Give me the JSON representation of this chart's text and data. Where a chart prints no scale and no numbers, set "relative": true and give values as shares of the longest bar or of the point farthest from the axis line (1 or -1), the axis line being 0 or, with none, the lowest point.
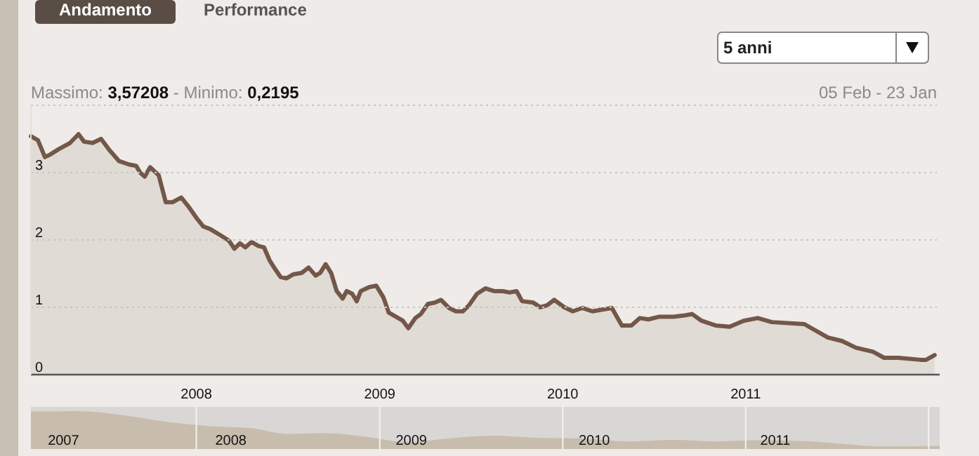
{
  "chart_data": [
    {
      "type": "area",
      "annotations": [
        "Andamento",
        "Performance",
        "5 anni",
        "Massimo:",
        "3,57208",
        "- Minimo:",
        "0,2195",
        "05 Feb - 23 Jan"
      ],
      "x": [
        "2007-02-05",
        "2007-02-19",
        "2007-03-05",
        "2007-03-16",
        "2007-04-02",
        "2007-04-24",
        "2007-05-11",
        "2007-05-22",
        "2007-06-08",
        "2007-06-25",
        "2007-07-12",
        "2007-07-31",
        "2007-08-20",
        "2007-09-03",
        "2007-09-11",
        "2007-09-20",
        "2007-10-01",
        "2007-10-18",
        "2007-11-01",
        "2007-11-15",
        "2007-12-02",
        "2007-12-16",
        "2008-01-01",
        "2008-01-15",
        "2008-01-29",
        "2008-02-18",
        "2008-03-06",
        "2008-03-17",
        "2008-03-28",
        "2008-04-08",
        "2008-04-20",
        "2008-05-04",
        "2008-05-15",
        "2008-05-26",
        "2008-06-06",
        "2008-06-17",
        "2008-06-29",
        "2008-07-13",
        "2008-07-29",
        "2008-08-12",
        "2008-08-26",
        "2008-09-04",
        "2008-09-15",
        "2008-09-26",
        "2008-10-07",
        "2008-10-19",
        "2008-10-27",
        "2008-11-07",
        "2008-11-16",
        "2008-11-24",
        "2008-12-11",
        "2008-12-25",
        "2009-01-08",
        "2009-01-19",
        "2009-02-02",
        "2009-02-16",
        "2009-02-27",
        "2009-03-13",
        "2009-03-24",
        "2009-04-07",
        "2009-04-21",
        "2009-05-03",
        "2009-05-19",
        "2009-06-02",
        "2009-06-16",
        "2009-06-28",
        "2009-07-14",
        "2009-07-31",
        "2009-08-17",
        "2009-09-03",
        "2009-09-17",
        "2009-10-01",
        "2009-10-12",
        "2009-11-03",
        "2009-11-17",
        "2009-12-01",
        "2009-12-15",
        "2010-01-04",
        "2010-01-21",
        "2010-02-09",
        "2010-03-01",
        "2010-04-09",
        "2010-04-29",
        "2010-05-18",
        "2010-06-04",
        "2010-06-21",
        "2010-07-13",
        "2010-08-10",
        "2010-09-02",
        "2010-09-16",
        "2010-10-05",
        "2010-11-02",
        "2010-11-30",
        "2010-12-28",
        "2011-01-25",
        "2011-02-22",
        "2011-04-28",
        "2011-06-14",
        "2011-07-12",
        "2011-08-09",
        "2011-09-12",
        "2011-10-04",
        "2011-11-01",
        "2011-12-16",
        "2011-12-27",
        "2012-01-13"
      ],
      "series": [
        {
          "color": "#735749",
          "values": [
            3.54,
            3.48,
            3.23,
            3.27,
            3.35,
            3.44,
            3.57,
            3.46,
            3.44,
            3.5,
            3.33,
            3.17,
            3.12,
            3.1,
            3.0,
            2.94,
            3.08,
            2.96,
            2.56,
            2.56,
            2.63,
            2.5,
            2.33,
            2.2,
            2.16,
            2.07,
            1.99,
            1.87,
            1.95,
            1.89,
            1.97,
            1.91,
            1.89,
            1.7,
            1.57,
            1.45,
            1.43,
            1.49,
            1.51,
            1.59,
            1.47,
            1.51,
            1.64,
            1.51,
            1.24,
            1.13,
            1.24,
            1.2,
            1.09,
            1.24,
            1.3,
            1.32,
            1.15,
            0.92,
            0.86,
            0.8,
            0.69,
            0.84,
            0.9,
            1.05,
            1.07,
            1.11,
            0.99,
            0.94,
            0.94,
            1.03,
            1.2,
            1.28,
            1.24,
            1.24,
            1.22,
            1.24,
            1.09,
            1.07,
            1.0,
            1.03,
            1.11,
            1.0,
            0.94,
            0.99,
            0.94,
            0.99,
            0.73,
            0.73,
            0.84,
            0.82,
            0.86,
            0.86,
            0.88,
            0.9,
            0.8,
            0.73,
            0.71,
            0.8,
            0.84,
            0.78,
            0.75,
            0.55,
            0.5,
            0.4,
            0.34,
            0.25,
            0.25,
            0.22,
            0.22,
            0.29
          ]
        }
      ],
      "xlim": [
        "2007-02-05",
        "2012-01-23"
      ],
      "xticks": [
        {
          "value": "2008-01-01",
          "label": "2008"
        },
        {
          "value": "2009-01-01",
          "label": "2009"
        },
        {
          "value": "2010-01-01",
          "label": "2010"
        },
        {
          "value": "2011-01-01",
          "label": "2011"
        }
      ],
      "ylim": [
        0,
        4
      ],
      "yticks": [
        0,
        1,
        2,
        3,
        {
          "value": 4,
          "label": null
        }
      ],
      "grid": "y"
    },
    {
      "type": "area",
      "relative": true,
      "x": [
        "2007-02-05",
        "2007-05-11",
        "2007-08-20",
        "2007-11-01",
        "2008-01-29",
        "2008-04-20",
        "2008-06-29",
        "2008-09-15",
        "2008-11-24",
        "2009-02-27",
        "2009-05-19",
        "2009-08-17",
        "2009-11-03",
        "2010-02-09",
        "2010-05-18",
        "2010-08-10",
        "2010-11-02",
        "2011-01-25",
        "2011-04-28",
        "2011-07-12",
        "2011-10-04",
        "2012-01-23"
      ],
      "series": [
        {
          "color": "#c8bdad",
          "values": [
            0.99,
            1,
            0.87,
            0.72,
            0.6,
            0.55,
            0.4,
            0.42,
            0.34,
            0.19,
            0.28,
            0.35,
            0.3,
            0.28,
            0.2,
            0.24,
            0.2,
            0.23,
            0.21,
            0.14,
            0.07,
            0.08
          ]
        }
      ],
      "xlim": [
        "2007-02-05",
        "2012-01-23"
      ],
      "xticks": [
        {
          "value": "2007-04-11",
          "label": "2007"
        },
        {
          "value": "2008-03-10",
          "label": "2008"
        },
        {
          "value": "2009-03-05",
          "label": "2009"
        },
        {
          "value": "2010-03-05",
          "label": "2010"
        },
        {
          "value": "2011-03-01",
          "label": "2011"
        }
      ],
      "ref_lines": [
        {
          "axis": "x",
          "value": "2008-01-01",
          "color": "#f4f2f0"
        },
        {
          "axis": "x",
          "value": "2009-01-01",
          "color": "#f4f2f0"
        },
        {
          "axis": "x",
          "value": "2010-01-01",
          "color": "#f4f2f0"
        },
        {
          "axis": "x",
          "value": "2011-01-01",
          "color": "#f4f2f0"
        },
        {
          "axis": "x",
          "value": "2012-01-01",
          "color": "#f4f2f0"
        }
      ]
    }
  ]
}
